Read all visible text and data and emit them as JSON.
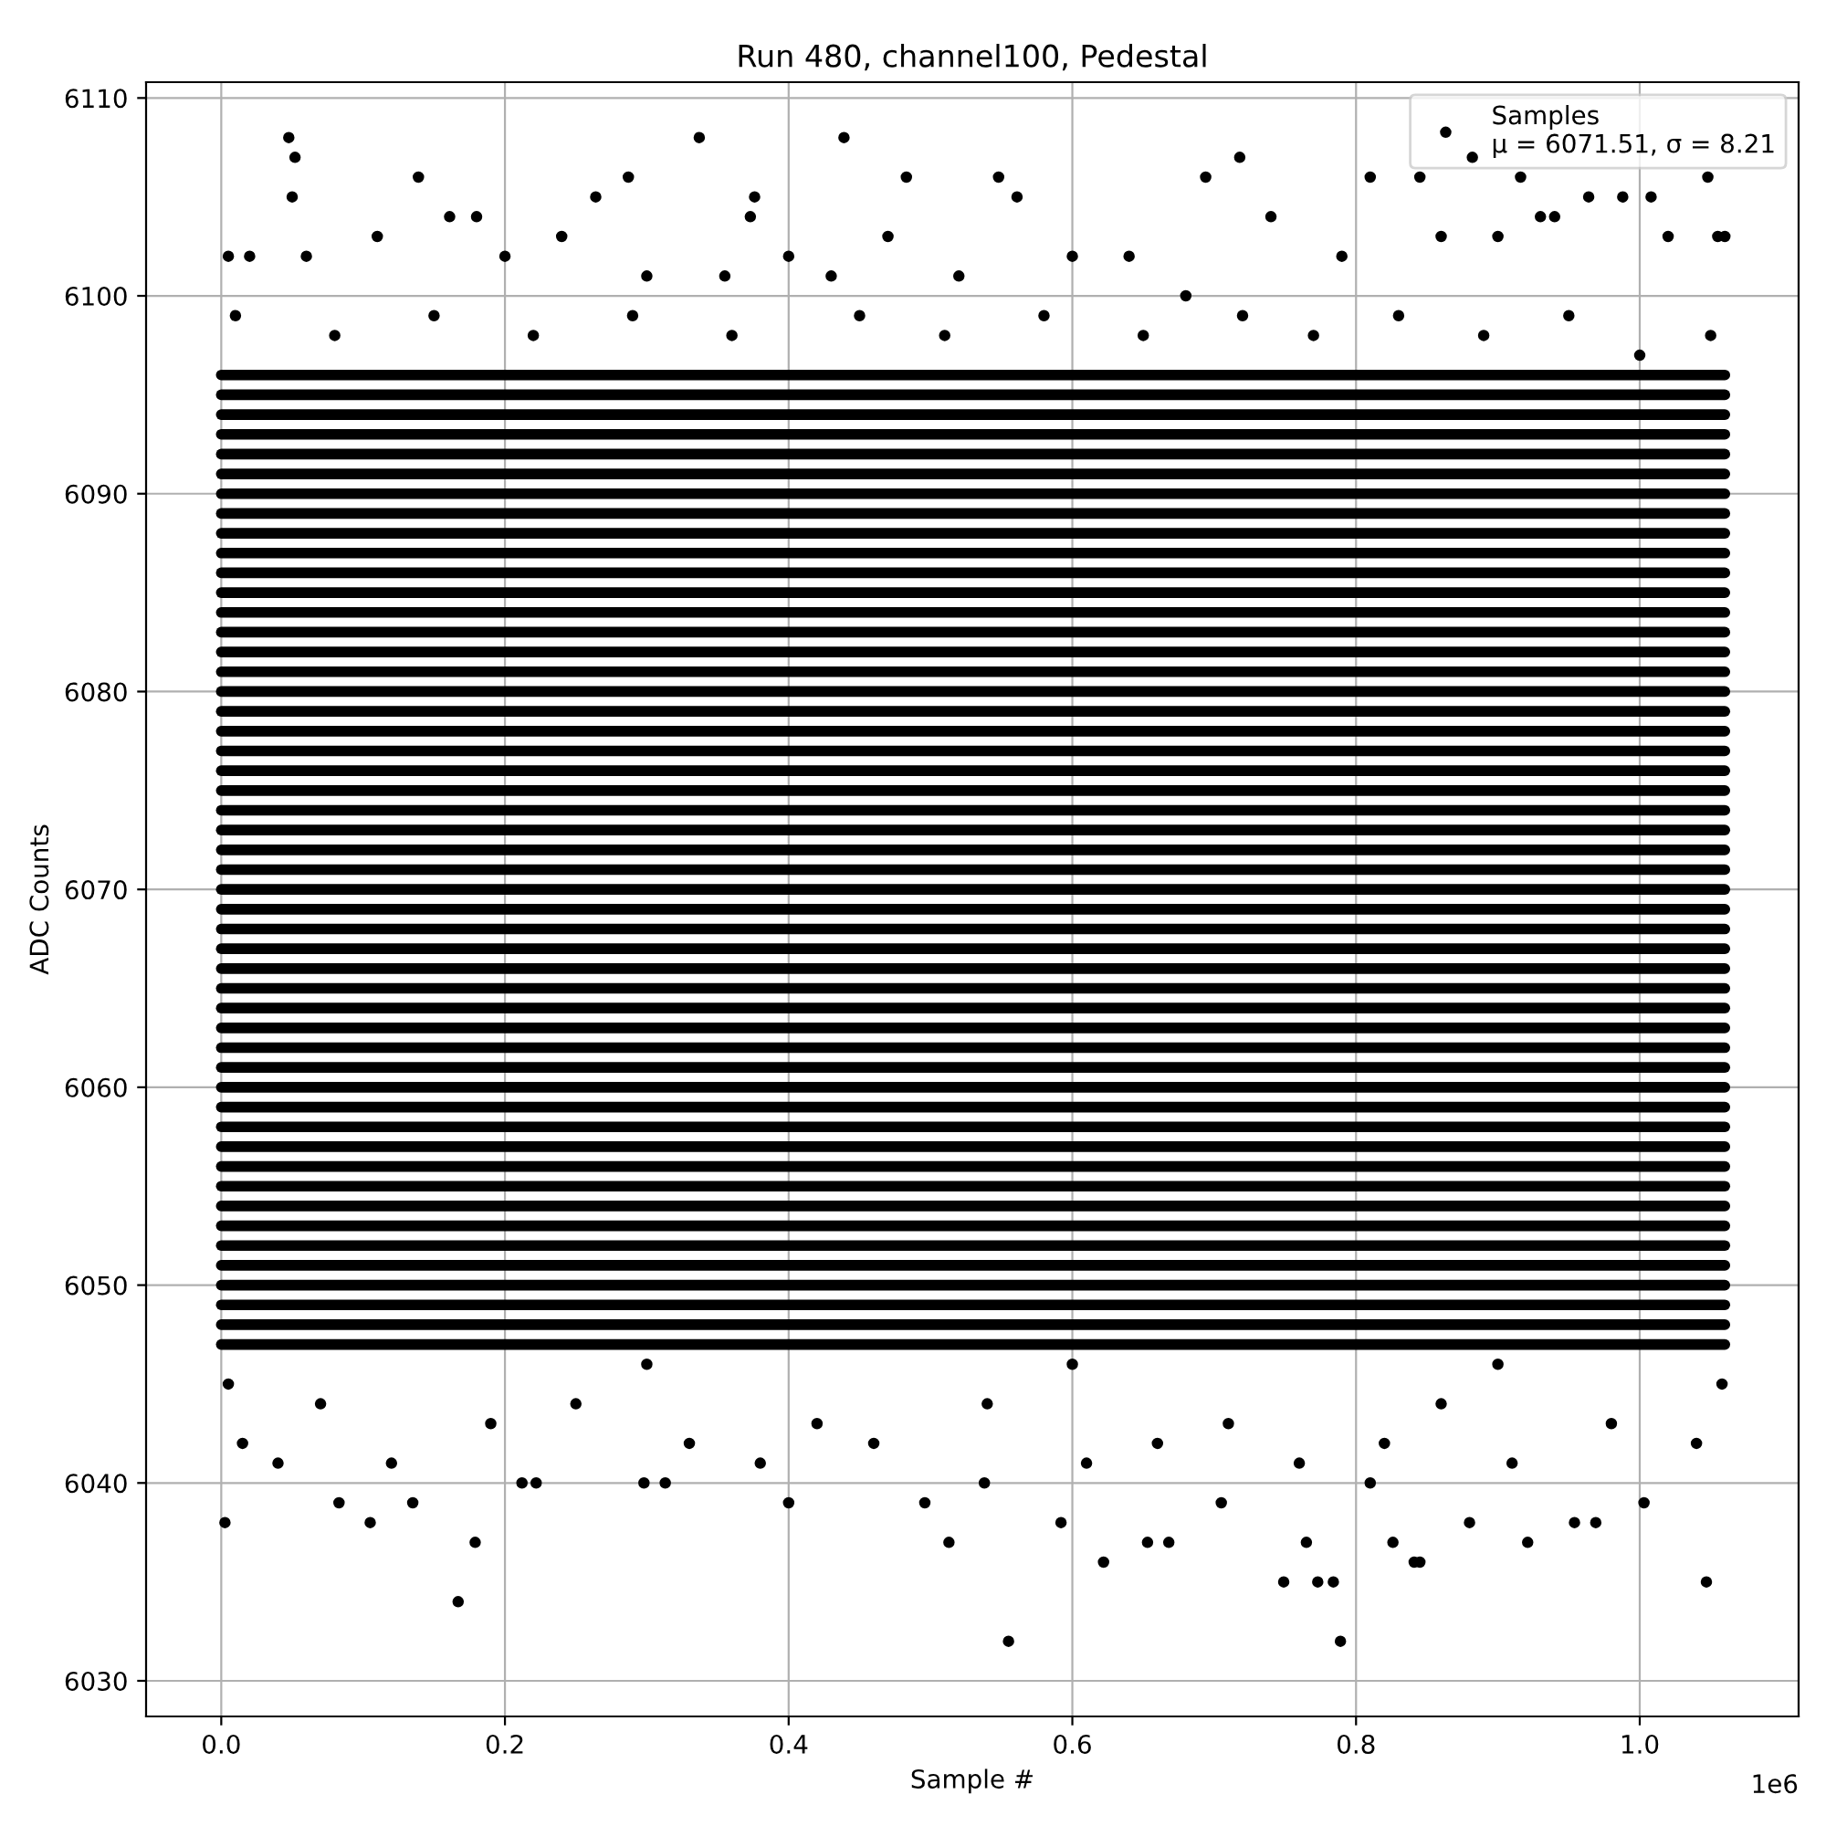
{
  "chart_data": {
    "type": "scatter",
    "title": "Run 480, channel100, Pedestal",
    "xlabel": "Sample #",
    "ylabel": "ADC Counts",
    "xlim": [
      -0.053,
      1.112
    ],
    "ylim": [
      6028.2,
      6110.8
    ],
    "xticks": [
      {
        "value": 0,
        "label": "0.0"
      },
      0.2,
      0.4,
      0.6,
      0.8,
      {
        "value": 1,
        "label": "1.0"
      }
    ],
    "yticks": [
      6030,
      6040,
      6050,
      6060,
      6070,
      6080,
      6090,
      6100,
      6110
    ],
    "grid": true,
    "legend": "top right",
    "marker": "circle",
    "annotations": [
      "1e6"
    ],
    "series": [
      {
        "name": "Samples\nμ = 6071.51, σ = 8.21",
        "color": "#000000",
        "x": [
          0.0476,
          0.052,
          0.05,
          0.139,
          0.161,
          0.18,
          0.264,
          0.287,
          0.337,
          0.376,
          0.373,
          0.439,
          0.483,
          0.548,
          0.561,
          0.694,
          0.718,
          0.81,
          0.882,
          0.916,
          0.988,
          1.048,
          1.055,
          1.008,
          0.964,
          0.93,
          0.845,
          0.005,
          0.02,
          0.06,
          0.11,
          0.2,
          0.24,
          0.3,
          0.355,
          0.4,
          0.43,
          0.47,
          0.52,
          0.6,
          0.64,
          0.68,
          0.74,
          0.79,
          0.86,
          0.9,
          0.94,
          1.02,
          1.06,
          0.01,
          0.08,
          0.15,
          0.22,
          0.29,
          0.36,
          0.45,
          0.51,
          0.58,
          0.65,
          0.72,
          0.77,
          0.83,
          0.89,
          0.95,
          1.0,
          1.05,
          0.0026,
          0.167,
          0.179,
          0.555,
          0.789,
          0.622,
          0.653,
          0.668,
          0.749,
          0.765,
          0.773,
          0.784,
          0.826,
          0.841,
          0.845,
          1.047,
          0.513,
          0.592,
          0.88,
          0.921,
          0.954,
          0.969,
          1.003,
          0.4,
          0.135,
          0.105,
          0.083,
          0.298,
          0.212,
          0.222,
          0.313,
          0.538,
          0.496,
          0.705,
          0.81,
          0.015,
          0.04,
          0.07,
          0.12,
          0.19,
          0.25,
          0.33,
          0.38,
          0.42,
          0.46,
          0.54,
          0.61,
          0.66,
          0.71,
          0.76,
          0.82,
          0.86,
          0.91,
          0.98,
          1.04,
          1.058,
          0.005,
          0.3,
          0.6,
          0.9
        ],
        "values": [
          6108,
          6107,
          6105,
          6106,
          6104,
          6104,
          6105,
          6106,
          6108,
          6105,
          6104,
          6108,
          6106,
          6106,
          6105,
          6106,
          6107,
          6106,
          6107,
          6106,
          6105,
          6106,
          6103,
          6105,
          6105,
          6104,
          6106,
          6102,
          6102,
          6102,
          6103,
          6102,
          6103,
          6101,
          6101,
          6102,
          6101,
          6103,
          6101,
          6102,
          6102,
          6100,
          6104,
          6102,
          6103,
          6103,
          6104,
          6103,
          6103,
          6099,
          6098,
          6099,
          6098,
          6099,
          6098,
          6099,
          6098,
          6099,
          6098,
          6099,
          6098,
          6099,
          6098,
          6099,
          6097,
          6098,
          6038,
          6034,
          6037,
          6032,
          6032,
          6036,
          6037,
          6037,
          6035,
          6037,
          6035,
          6035,
          6037,
          6036,
          6036,
          6035,
          6037,
          6038,
          6038,
          6037,
          6038,
          6038,
          6039,
          6039,
          6039,
          6038,
          6039,
          6040,
          6040,
          6040,
          6040,
          6040,
          6039,
          6039,
          6040,
          6042,
          6041,
          6044,
          6041,
          6043,
          6044,
          6042,
          6041,
          6043,
          6042,
          6044,
          6041,
          6042,
          6043,
          6041,
          6042,
          6044,
          6041,
          6043,
          6042,
          6045,
          6045,
          6046,
          6046,
          6046
        ]
      },
      {
        "type": "line",
        "marker": "none",
        "color": "#000000",
        "x": [
          0,
          1.06
        ],
        "values": [
          6047,
          6047
        ]
      },
      {
        "type": "line",
        "marker": "none",
        "color": "#000000",
        "x": [
          0,
          1.06
        ],
        "values": [
          6048,
          6048
        ]
      },
      {
        "type": "line",
        "marker": "none",
        "color": "#000000",
        "x": [
          0,
          1.06
        ],
        "values": [
          6049,
          6049
        ]
      },
      {
        "type": "line",
        "marker": "none",
        "color": "#000000",
        "x": [
          0,
          1.06
        ],
        "values": [
          6050,
          6050
        ]
      },
      {
        "type": "line",
        "marker": "none",
        "color": "#000000",
        "x": [
          0,
          1.06
        ],
        "values": [
          6051,
          6051
        ]
      },
      {
        "type": "line",
        "marker": "none",
        "color": "#000000",
        "x": [
          0,
          1.06
        ],
        "values": [
          6052,
          6052
        ]
      },
      {
        "type": "line",
        "marker": "none",
        "color": "#000000",
        "x": [
          0,
          1.06
        ],
        "values": [
          6053,
          6053
        ]
      },
      {
        "type": "line",
        "marker": "none",
        "color": "#000000",
        "x": [
          0,
          1.06
        ],
        "values": [
          6054,
          6054
        ]
      },
      {
        "type": "line",
        "marker": "none",
        "color": "#000000",
        "x": [
          0,
          1.06
        ],
        "values": [
          6055,
          6055
        ]
      },
      {
        "type": "line",
        "marker": "none",
        "color": "#000000",
        "x": [
          0,
          1.06
        ],
        "values": [
          6056,
          6056
        ]
      },
      {
        "type": "line",
        "marker": "none",
        "color": "#000000",
        "x": [
          0,
          1.06
        ],
        "values": [
          6057,
          6057
        ]
      },
      {
        "type": "line",
        "marker": "none",
        "color": "#000000",
        "x": [
          0,
          1.06
        ],
        "values": [
          6058,
          6058
        ]
      },
      {
        "type": "line",
        "marker": "none",
        "color": "#000000",
        "x": [
          0,
          1.06
        ],
        "values": [
          6059,
          6059
        ]
      },
      {
        "type": "line",
        "marker": "none",
        "color": "#000000",
        "x": [
          0,
          1.06
        ],
        "values": [
          6060,
          6060
        ]
      },
      {
        "type": "line",
        "marker": "none",
        "color": "#000000",
        "x": [
          0,
          1.06
        ],
        "values": [
          6061,
          6061
        ]
      },
      {
        "type": "line",
        "marker": "none",
        "color": "#000000",
        "x": [
          0,
          1.06
        ],
        "values": [
          6062,
          6062
        ]
      },
      {
        "type": "line",
        "marker": "none",
        "color": "#000000",
        "x": [
          0,
          1.06
        ],
        "values": [
          6063,
          6063
        ]
      },
      {
        "type": "line",
        "marker": "none",
        "color": "#000000",
        "x": [
          0,
          1.06
        ],
        "values": [
          6064,
          6064
        ]
      },
      {
        "type": "line",
        "marker": "none",
        "color": "#000000",
        "x": [
          0,
          1.06
        ],
        "values": [
          6065,
          6065
        ]
      },
      {
        "type": "line",
        "marker": "none",
        "color": "#000000",
        "x": [
          0,
          1.06
        ],
        "values": [
          6066,
          6066
        ]
      },
      {
        "type": "line",
        "marker": "none",
        "color": "#000000",
        "x": [
          0,
          1.06
        ],
        "values": [
          6067,
          6067
        ]
      },
      {
        "type": "line",
        "marker": "none",
        "color": "#000000",
        "x": [
          0,
          1.06
        ],
        "values": [
          6068,
          6068
        ]
      },
      {
        "type": "line",
        "marker": "none",
        "color": "#000000",
        "x": [
          0,
          1.06
        ],
        "values": [
          6069,
          6069
        ]
      },
      {
        "type": "line",
        "marker": "none",
        "color": "#000000",
        "x": [
          0,
          1.06
        ],
        "values": [
          6070,
          6070
        ]
      },
      {
        "type": "line",
        "marker": "none",
        "color": "#000000",
        "x": [
          0,
          1.06
        ],
        "values": [
          6071,
          6071
        ]
      },
      {
        "type": "line",
        "marker": "none",
        "color": "#000000",
        "x": [
          0,
          1.06
        ],
        "values": [
          6072,
          6072
        ]
      },
      {
        "type": "line",
        "marker": "none",
        "color": "#000000",
        "x": [
          0,
          1.06
        ],
        "values": [
          6073,
          6073
        ]
      },
      {
        "type": "line",
        "marker": "none",
        "color": "#000000",
        "x": [
          0,
          1.06
        ],
        "values": [
          6074,
          6074
        ]
      },
      {
        "type": "line",
        "marker": "none",
        "color": "#000000",
        "x": [
          0,
          1.06
        ],
        "values": [
          6075,
          6075
        ]
      },
      {
        "type": "line",
        "marker": "none",
        "color": "#000000",
        "x": [
          0,
          1.06
        ],
        "values": [
          6076,
          6076
        ]
      },
      {
        "type": "line",
        "marker": "none",
        "color": "#000000",
        "x": [
          0,
          1.06
        ],
        "values": [
          6077,
          6077
        ]
      },
      {
        "type": "line",
        "marker": "none",
        "color": "#000000",
        "x": [
          0,
          1.06
        ],
        "values": [
          6078,
          6078
        ]
      },
      {
        "type": "line",
        "marker": "none",
        "color": "#000000",
        "x": [
          0,
          1.06
        ],
        "values": [
          6079,
          6079
        ]
      },
      {
        "type": "line",
        "marker": "none",
        "color": "#000000",
        "x": [
          0,
          1.06
        ],
        "values": [
          6080,
          6080
        ]
      },
      {
        "type": "line",
        "marker": "none",
        "color": "#000000",
        "x": [
          0,
          1.06
        ],
        "values": [
          6081,
          6081
        ]
      },
      {
        "type": "line",
        "marker": "none",
        "color": "#000000",
        "x": [
          0,
          1.06
        ],
        "values": [
          6082,
          6082
        ]
      },
      {
        "type": "line",
        "marker": "none",
        "color": "#000000",
        "x": [
          0,
          1.06
        ],
        "values": [
          6083,
          6083
        ]
      },
      {
        "type": "line",
        "marker": "none",
        "color": "#000000",
        "x": [
          0,
          1.06
        ],
        "values": [
          6084,
          6084
        ]
      },
      {
        "type": "line",
        "marker": "none",
        "color": "#000000",
        "x": [
          0,
          1.06
        ],
        "values": [
          6085,
          6085
        ]
      },
      {
        "type": "line",
        "marker": "none",
        "color": "#000000",
        "x": [
          0,
          1.06
        ],
        "values": [
          6086,
          6086
        ]
      },
      {
        "type": "line",
        "marker": "none",
        "color": "#000000",
        "x": [
          0,
          1.06
        ],
        "values": [
          6087,
          6087
        ]
      },
      {
        "type": "line",
        "marker": "none",
        "color": "#000000",
        "x": [
          0,
          1.06
        ],
        "values": [
          6088,
          6088
        ]
      },
      {
        "type": "line",
        "marker": "none",
        "color": "#000000",
        "x": [
          0,
          1.06
        ],
        "values": [
          6089,
          6089
        ]
      },
      {
        "type": "line",
        "marker": "none",
        "color": "#000000",
        "x": [
          0,
          1.06
        ],
        "values": [
          6090,
          6090
        ]
      },
      {
        "type": "line",
        "marker": "none",
        "color": "#000000",
        "x": [
          0,
          1.06
        ],
        "values": [
          6091,
          6091
        ]
      },
      {
        "type": "line",
        "marker": "none",
        "color": "#000000",
        "x": [
          0,
          1.06
        ],
        "values": [
          6092,
          6092
        ]
      },
      {
        "type": "line",
        "marker": "none",
        "color": "#000000",
        "x": [
          0,
          1.06
        ],
        "values": [
          6093,
          6093
        ]
      },
      {
        "type": "line",
        "marker": "none",
        "color": "#000000",
        "x": [
          0,
          1.06
        ],
        "values": [
          6094,
          6094
        ]
      },
      {
        "type": "line",
        "marker": "none",
        "color": "#000000",
        "x": [
          0,
          1.06
        ],
        "values": [
          6095,
          6095
        ]
      },
      {
        "type": "line",
        "marker": "none",
        "color": "#000000",
        "x": [
          0,
          1.06
        ],
        "values": [
          6096,
          6096
        ]
      }
    ]
  }
}
